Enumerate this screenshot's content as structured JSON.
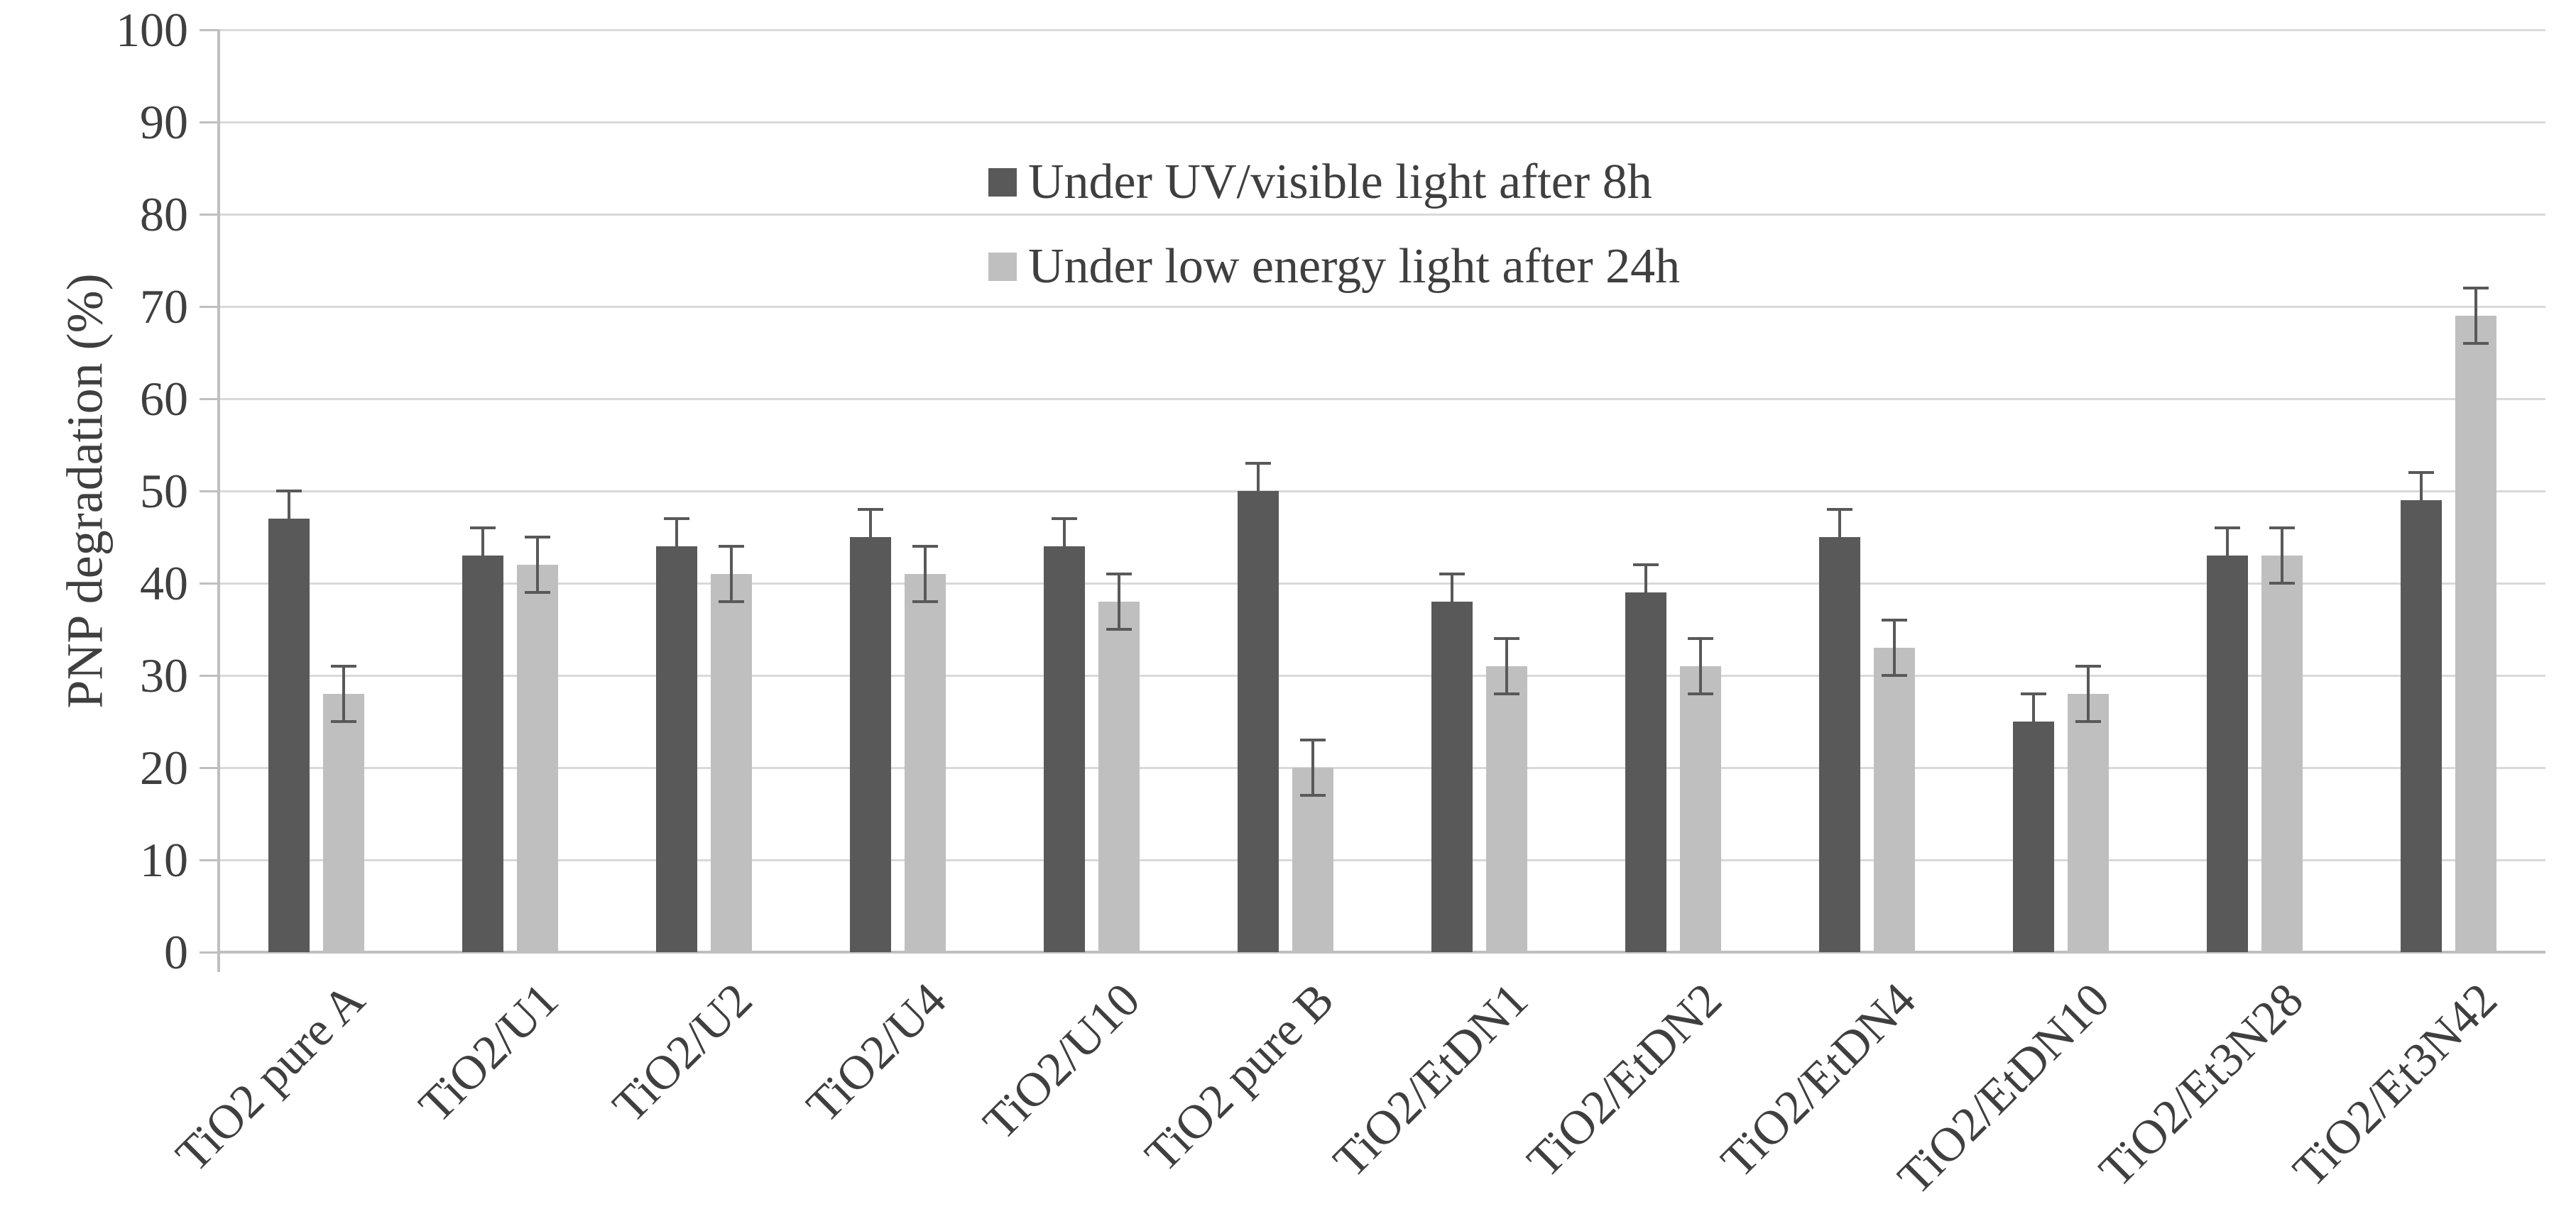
{
  "chart_data": {
    "type": "bar",
    "title": "",
    "ylabel": "PNP degradation (%)",
    "xlabel": "",
    "ylim": [
      0,
      100
    ],
    "ytick_step": 10,
    "yticks": [
      0,
      10,
      20,
      30,
      40,
      50,
      60,
      70,
      80,
      90,
      100
    ],
    "grid": "horizontal",
    "legend_position": "upper-center-inside",
    "categories": [
      "TiO2 pure A",
      "TiO2/U1",
      "TiO2/U2",
      "TiO2/U4",
      "TiO2/U10",
      "TiO2 pure B",
      "TiO2/EtDN1",
      "TiO2/EtDN2",
      "TiO2/EtDN4",
      "TiO2/EtDN10",
      "TiO2/Et3N28",
      "TiO2/Et3N42"
    ],
    "series": [
      {
        "name": "Under UV/visible light after 8h",
        "color": "#595959",
        "values": [
          47,
          43,
          44,
          45,
          44,
          50,
          38,
          39,
          45,
          25,
          43,
          49
        ],
        "errors": [
          3,
          3,
          3,
          3,
          3,
          3,
          3,
          3,
          3,
          3,
          3,
          3
        ]
      },
      {
        "name": "Under low energy light after 24h",
        "color": "#BFBFBF",
        "values": [
          28,
          42,
          41,
          41,
          38,
          20,
          31,
          31,
          33,
          28,
          43,
          69
        ],
        "errors": [
          3,
          3,
          3,
          3,
          3,
          3,
          3,
          3,
          3,
          3,
          3,
          3
        ]
      }
    ],
    "error_bar_color": "#595959",
    "gridline_color": "#D9D9D9",
    "axis_color": "#BFBFBF",
    "text_color": "#3F3F3F",
    "background_color": "#FFFFFF"
  }
}
